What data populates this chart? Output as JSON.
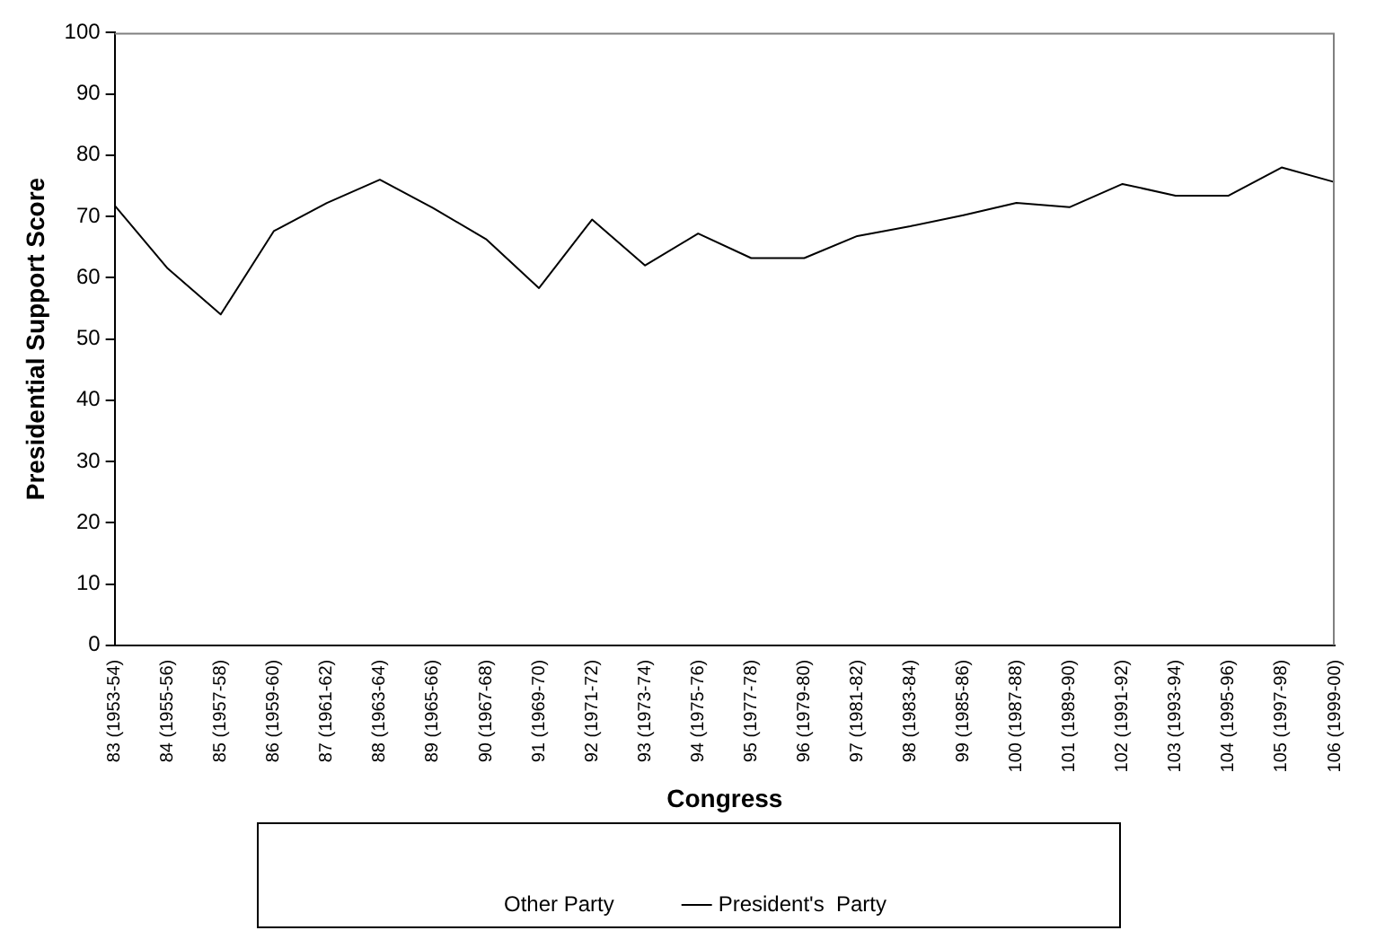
{
  "chart_data": {
    "type": "line",
    "xlabel": "Congress",
    "ylabel": "Presidential Support Score",
    "categories": [
      "83 (1953-54)",
      "84 (1955-56)",
      "85 (1957-58)",
      "86 (1959-60)",
      "87 (1961-62)",
      "88 (1963-64)",
      "89 (1965-66)",
      "90 (1967-68)",
      "91 (1969-70)",
      "92 (1971-72)",
      "93 (1973-74)",
      "94 (1975-76)",
      "95 (1977-78)",
      "96 (1979-80)",
      "97 (1981-82)",
      "98 (1983-84)",
      "99 (1985-86)",
      "100 (1987-88)",
      "101 (1989-90)",
      "102 (1991-92)",
      "103 (1993-94)",
      "104 (1995-96)",
      "105 (1997-98)",
      "106 (1999-00)"
    ],
    "series": [
      {
        "name": "Other Party",
        "values": [
          null,
          null,
          null,
          null,
          null,
          null,
          null,
          null,
          null,
          null,
          null,
          null,
          null,
          null,
          null,
          null,
          null,
          null,
          null,
          null,
          null,
          null,
          null,
          null
        ]
      },
      {
        "name": "President's  Party",
        "color": "#000000",
        "values": [
          71.8,
          61.5,
          54,
          67.6,
          72.2,
          76,
          71.4,
          66.3,
          58.3,
          69.5,
          62,
          67.2,
          63.2,
          63.2,
          66.8,
          68.4,
          70.2,
          72.2,
          71.5,
          75.3,
          73.4,
          73.4,
          78,
          75.6
        ]
      }
    ],
    "ylim": [
      0,
      100
    ],
    "yticks": [
      0,
      10,
      20,
      30,
      40,
      50,
      60,
      70,
      80,
      90,
      100
    ],
    "grid": false,
    "legend": "bottom",
    "marker": "none",
    "line_style": "solid"
  }
}
